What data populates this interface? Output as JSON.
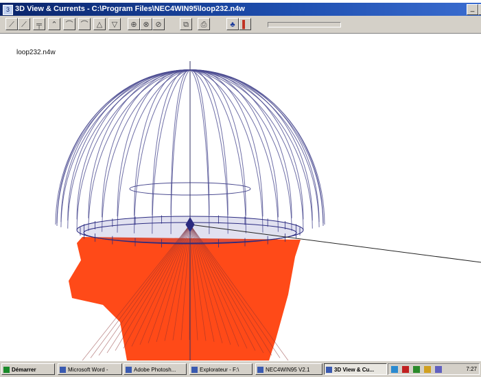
{
  "window": {
    "title": "3D View & Currents - C:\\Program Files\\NEC4WIN95\\loop232.n4w"
  },
  "toolbar": {
    "buttons": [
      {
        "icon": "view-tilt-left-icon",
        "glyph": "⟋"
      },
      {
        "icon": "view-tilt-right-icon",
        "glyph": "⟋"
      },
      {
        "icon": "view-level-icon",
        "glyph": "╤"
      },
      {
        "icon": "view-up-icon",
        "glyph": "⌃"
      },
      {
        "icon": "rotate-left-icon",
        "glyph": "⌒"
      },
      {
        "icon": "rotate-right-icon",
        "glyph": "⌒"
      },
      {
        "icon": "triangle-left-icon",
        "glyph": "△"
      },
      {
        "icon": "triangle-right-icon",
        "glyph": "▽"
      },
      {
        "icon": "zoom-fit-icon",
        "glyph": "⊕"
      },
      {
        "icon": "zoom-in-icon",
        "glyph": "⊗"
      },
      {
        "icon": "zoom-out-icon",
        "glyph": "⊘"
      },
      {
        "icon": "copy-icon",
        "glyph": "⧉"
      },
      {
        "icon": "print-icon",
        "glyph": "⎙"
      },
      {
        "icon": "currents-icon",
        "glyph": "♣"
      },
      {
        "icon": "pattern-icon",
        "glyph": "▌"
      }
    ]
  },
  "view": {
    "filename_label": "loop232.n4w",
    "colors": {
      "background": "#ffffff",
      "pattern_lines": "#4a4a90",
      "current_fill": "#ff4a18",
      "structure": "#2a2a80"
    }
  },
  "taskbar": {
    "start_label": "Démarrer",
    "tasks": [
      {
        "label": "Microsoft Word -"
      },
      {
        "label": "Adobe Photosh..."
      },
      {
        "label": "Explorateur - F:\\"
      },
      {
        "label": "NEC4WIN95 V2.1"
      },
      {
        "label": "3D View & Cu...",
        "active": true
      }
    ],
    "clock": "7:27"
  }
}
